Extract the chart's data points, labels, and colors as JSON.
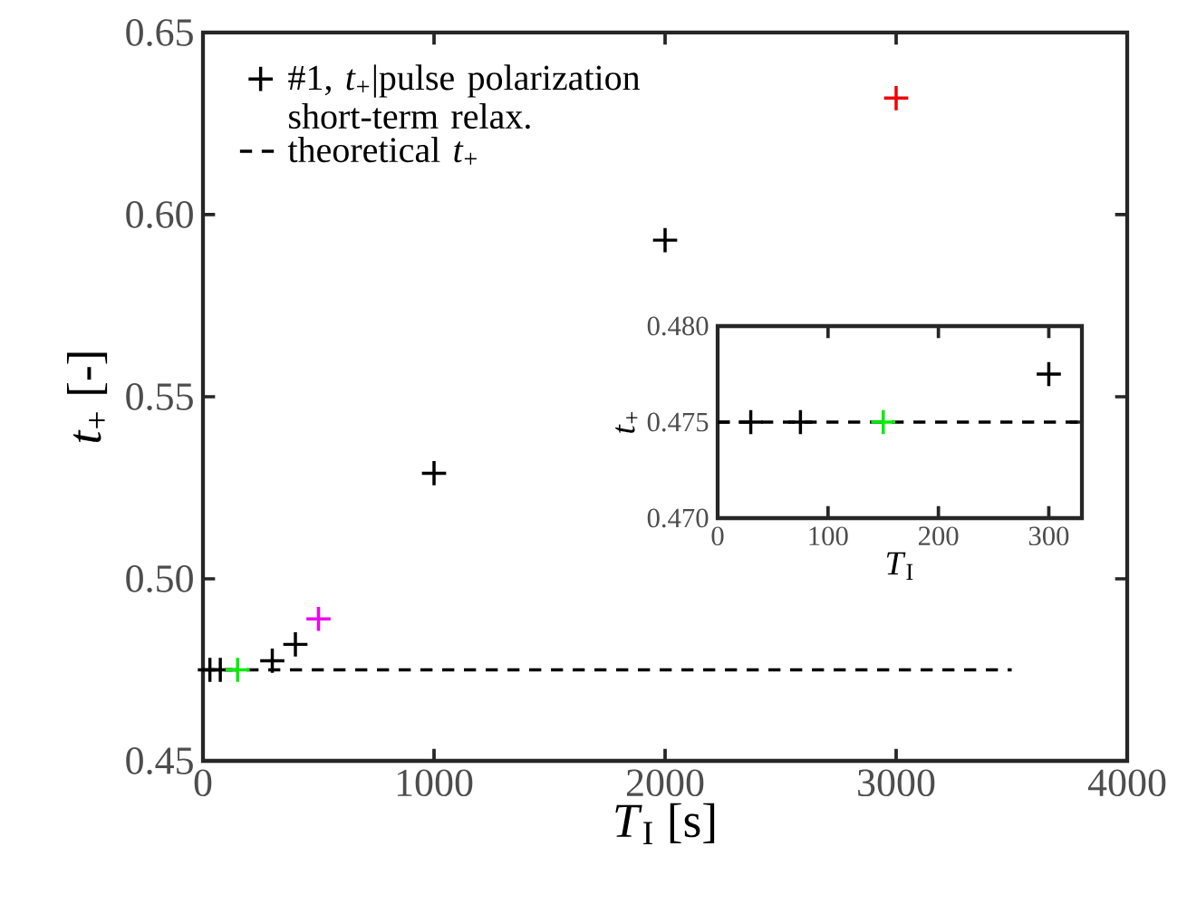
{
  "chart_data": [
    {
      "type": "scatter",
      "xlabel": "*T*$_{I}$ [s]",
      "ylabel": "*t*$_{+}$ [-]",
      "xlim": [
        0,
        4000
      ],
      "ylim": [
        0.45,
        0.65
      ],
      "xticks": [
        0,
        1000,
        2000,
        3000,
        4000
      ],
      "yticks": [
        {
          "value": 0.45,
          "label": "0.45"
        },
        {
          "value": 0.5,
          "label": "0.50"
        },
        {
          "value": 0.55,
          "label": "0.55"
        },
        {
          "value": 0.6,
          "label": "0.60"
        },
        {
          "value": 0.65,
          "label": "0.65"
        }
      ],
      "legend": "top left",
      "series": [
        {
          "name": "#1, *t*$_{+}$|pulse polarization short-term relax.",
          "color": "#000000",
          "x": [
            30,
            75,
            150,
            300,
            400,
            500,
            1000,
            2000,
            3000
          ],
          "values": [
            0.475,
            0.475,
            0.475,
            0.4775,
            0.482,
            0.489,
            0.529,
            0.593,
            0.632
          ],
          "colors": [
            "#000000",
            "#000000",
            "#00ee00",
            "#000000",
            "#000000",
            "#ee00ee",
            "#000000",
            "#000000",
            "#ee0000"
          ],
          "marker": "cross"
        },
        {
          "name": "theoretical *t*$_{+}$",
          "type": "line",
          "line_style": "dashed",
          "color": "#000000",
          "x": [
            0,
            3500
          ],
          "values": [
            0.475,
            0.475
          ]
        }
      ]
    },
    {
      "type": "scatter",
      "xlabel": "*T*$_{I}$",
      "ylabel": "*t*$_{+}$",
      "xlim": [
        0,
        330
      ],
      "ylim": [
        0.47,
        0.48
      ],
      "xticks": [
        0,
        100,
        200,
        300
      ],
      "yticks": [
        {
          "value": 0.47,
          "label": "0.470"
        },
        {
          "value": 0.475,
          "label": "0.475"
        },
        {
          "value": 0.48,
          "label": "0.480"
        }
      ],
      "series": [
        {
          "color": "#000000",
          "x": [
            30,
            75,
            150,
            300
          ],
          "values": [
            0.475,
            0.475,
            0.475,
            0.4775
          ],
          "colors": [
            "#000000",
            "#000000",
            "#00ee00",
            "#000000"
          ],
          "marker": "cross"
        },
        {
          "type": "line",
          "line_style": "dashed",
          "color": "#000000",
          "x": [
            0,
            330
          ],
          "values": [
            0.475,
            0.475
          ]
        }
      ]
    }
  ]
}
